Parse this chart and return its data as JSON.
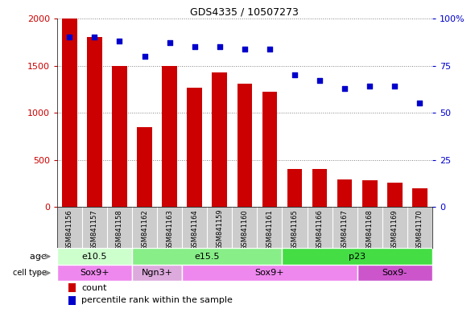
{
  "title": "GDS4335 / 10507273",
  "samples": [
    "GSM841156",
    "GSM841157",
    "GSM841158",
    "GSM841162",
    "GSM841163",
    "GSM841164",
    "GSM841159",
    "GSM841160",
    "GSM841161",
    "GSM841165",
    "GSM841166",
    "GSM841167",
    "GSM841168",
    "GSM841169",
    "GSM841170"
  ],
  "counts": [
    2000,
    1800,
    1500,
    850,
    1500,
    1270,
    1430,
    1310,
    1220,
    400,
    400,
    290,
    285,
    260,
    200
  ],
  "percentiles": [
    90,
    90,
    88,
    80,
    87,
    85,
    85,
    84,
    84,
    70,
    67,
    63,
    64,
    64,
    55
  ],
  "bar_color": "#cc0000",
  "dot_color": "#0000cc",
  "left_yaxis_color": "#cc0000",
  "right_yaxis_color": "#0000cc",
  "ylim_left": [
    0,
    2000
  ],
  "ylim_right": [
    0,
    100
  ],
  "yticks_left": [
    0,
    500,
    1000,
    1500,
    2000
  ],
  "ytick_labels_left": [
    "0",
    "500",
    "1000",
    "1500",
    "2000"
  ],
  "yticks_right": [
    0,
    25,
    50,
    75,
    100
  ],
  "ytick_labels_right": [
    "0",
    "25",
    "50",
    "75",
    "100%"
  ],
  "age_groups": [
    {
      "label": "e10.5",
      "start": 0,
      "end": 3,
      "color": "#ccffcc"
    },
    {
      "label": "e15.5",
      "start": 3,
      "end": 9,
      "color": "#88ee88"
    },
    {
      "label": "p23",
      "start": 9,
      "end": 15,
      "color": "#44dd44"
    }
  ],
  "cell_type_groups": [
    {
      "label": "Sox9+",
      "start": 0,
      "end": 3,
      "color": "#ee88ee"
    },
    {
      "label": "Ngn3+",
      "start": 3,
      "end": 5,
      "color": "#ddaadd"
    },
    {
      "label": "Sox9+",
      "start": 5,
      "end": 12,
      "color": "#ee88ee"
    },
    {
      "label": "Sox9-",
      "start": 12,
      "end": 15,
      "color": "#cc55cc"
    }
  ],
  "xtick_bg_color": "#cccccc",
  "plot_bg_color": "#ffffff",
  "legend_count_color": "#cc0000",
  "legend_dot_color": "#0000cc"
}
